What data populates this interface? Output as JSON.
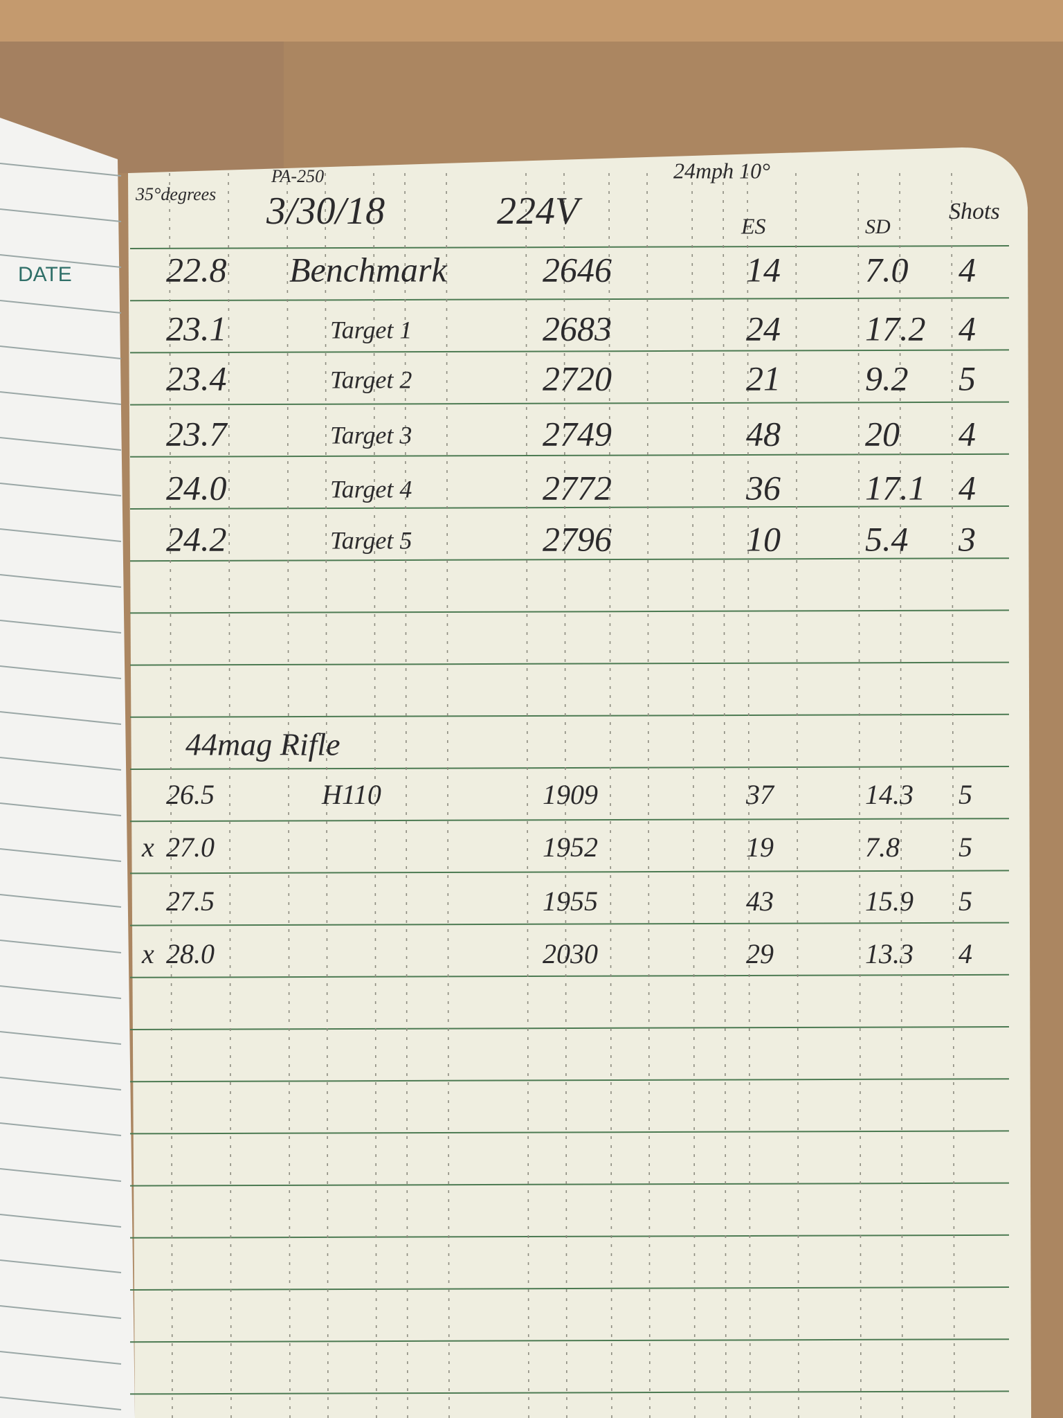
{
  "left_page": {
    "label": "DATE"
  },
  "header": {
    "temperature": "35°degrees",
    "powder_note": "PA-250",
    "date": "3/30/18",
    "caliber": "224V",
    "wind": "24mph 10°",
    "columns": {
      "es": "ES",
      "sd": "SD",
      "shots": "Shots"
    }
  },
  "table1": {
    "rows": [
      {
        "charge": "22.8",
        "load": "Benchmark",
        "velocity": "2646",
        "es": "14",
        "sd": "7.0",
        "shots": "4"
      },
      {
        "charge": "23.1",
        "load": "Target 1",
        "velocity": "2683",
        "es": "24",
        "sd": "17.2",
        "shots": "4"
      },
      {
        "charge": "23.4",
        "load": "Target 2",
        "velocity": "2720",
        "es": "21",
        "sd": "9.2",
        "shots": "5"
      },
      {
        "charge": "23.7",
        "load": "Target 3",
        "velocity": "2749",
        "es": "48",
        "sd": "20",
        "shots": "4"
      },
      {
        "charge": "24.0",
        "load": "Target 4",
        "velocity": "2772",
        "es": "36",
        "sd": "17.1",
        "shots": "4"
      },
      {
        "charge": "24.2",
        "load": "Target 5",
        "velocity": "2796",
        "es": "10",
        "sd": "5.4",
        "shots": "3"
      }
    ]
  },
  "table2": {
    "title": "44mag Rifle",
    "rows": [
      {
        "charge": "26.5",
        "load": "H110",
        "velocity": "1909",
        "es": "37",
        "sd": "14.3",
        "shots": "5"
      },
      {
        "mark": "x",
        "charge": "27.0",
        "velocity": "1952",
        "es": "19",
        "sd": "7.8",
        "shots": "5"
      },
      {
        "charge": "27.5",
        "velocity": "1955",
        "es": "43",
        "sd": "15.9",
        "shots": "5"
      },
      {
        "mark": "x",
        "charge": "28.0",
        "velocity": "2030",
        "es": "29",
        "sd": "13.3",
        "shots": "4"
      }
    ]
  }
}
